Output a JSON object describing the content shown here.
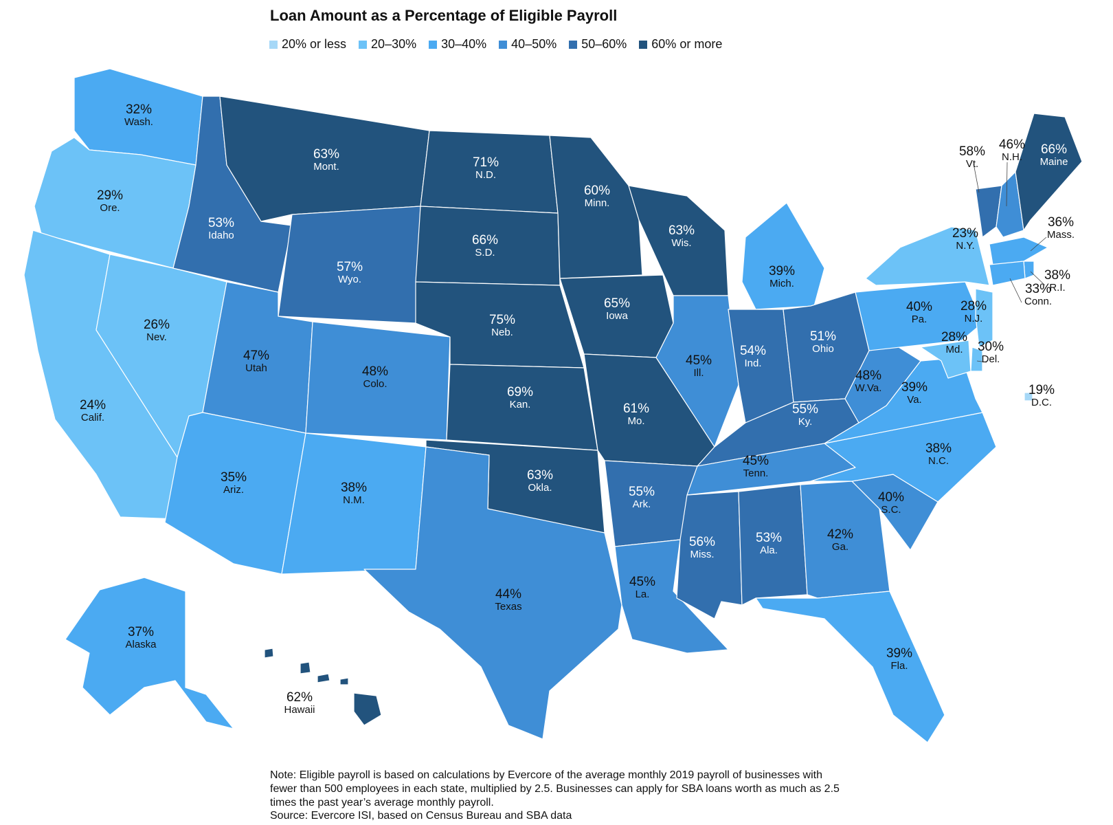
{
  "title": "Loan Amount as a Percentage of Eligible Payroll",
  "legend": [
    {
      "label": "20% or less",
      "color": "#A6D8F7"
    },
    {
      "label": "20–30%",
      "color": "#6CC2F7"
    },
    {
      "label": "30–40%",
      "color": "#4BAAF2"
    },
    {
      "label": "40–50%",
      "color": "#3F8ED6"
    },
    {
      "label": "50–60%",
      "color": "#326FAE"
    },
    {
      "label": "60% or more",
      "color": "#22537D"
    }
  ],
  "states": {
    "WA": {
      "pct": "32%",
      "name": "Wash.",
      "value": 32,
      "color": "#4BAAF2"
    },
    "OR": {
      "pct": "29%",
      "name": "Ore.",
      "value": 29,
      "color": "#6CC2F7"
    },
    "CA": {
      "pct": "24%",
      "name": "Calif.",
      "value": 24,
      "color": "#6CC2F7"
    },
    "NV": {
      "pct": "26%",
      "name": "Nev.",
      "value": 26,
      "color": "#6CC2F7"
    },
    "ID": {
      "pct": "53%",
      "name": "Idaho",
      "value": 53,
      "color": "#326FAE"
    },
    "MT": {
      "pct": "63%",
      "name": "Mont.",
      "value": 63,
      "color": "#22537D"
    },
    "WY": {
      "pct": "57%",
      "name": "Wyo.",
      "value": 57,
      "color": "#326FAE"
    },
    "UT": {
      "pct": "47%",
      "name": "Utah",
      "value": 47,
      "color": "#3F8ED6"
    },
    "CO": {
      "pct": "48%",
      "name": "Colo.",
      "value": 48,
      "color": "#3F8ED6"
    },
    "AZ": {
      "pct": "35%",
      "name": "Ariz.",
      "value": 35,
      "color": "#4BAAF2"
    },
    "NM": {
      "pct": "38%",
      "name": "N.M.",
      "value": 38,
      "color": "#4BAAF2"
    },
    "ND": {
      "pct": "71%",
      "name": "N.D.",
      "value": 71,
      "color": "#22537D"
    },
    "SD": {
      "pct": "66%",
      "name": "S.D.",
      "value": 66,
      "color": "#22537D"
    },
    "NE": {
      "pct": "75%",
      "name": "Neb.",
      "value": 75,
      "color": "#22537D"
    },
    "KS": {
      "pct": "69%",
      "name": "Kan.",
      "value": 69,
      "color": "#22537D"
    },
    "OK": {
      "pct": "63%",
      "name": "Okla.",
      "value": 63,
      "color": "#22537D"
    },
    "TX": {
      "pct": "44%",
      "name": "Texas",
      "value": 44,
      "color": "#3F8ED6"
    },
    "MN": {
      "pct": "60%",
      "name": "Minn.",
      "value": 60,
      "color": "#22537D"
    },
    "IA": {
      "pct": "65%",
      "name": "Iowa",
      "value": 65,
      "color": "#22537D"
    },
    "MO": {
      "pct": "61%",
      "name": "Mo.",
      "value": 61,
      "color": "#22537D"
    },
    "AR": {
      "pct": "55%",
      "name": "Ark.",
      "value": 55,
      "color": "#326FAE"
    },
    "LA": {
      "pct": "45%",
      "name": "La.",
      "value": 45,
      "color": "#3F8ED6"
    },
    "WI": {
      "pct": "63%",
      "name": "Wis.",
      "value": 63,
      "color": "#22537D"
    },
    "IL": {
      "pct": "45%",
      "name": "Ill.",
      "value": 45,
      "color": "#3F8ED6"
    },
    "MI": {
      "pct": "39%",
      "name": "Mich.",
      "value": 39,
      "color": "#4BAAF2"
    },
    "IN": {
      "pct": "54%",
      "name": "Ind.",
      "value": 54,
      "color": "#326FAE"
    },
    "OH": {
      "pct": "51%",
      "name": "Ohio",
      "value": 51,
      "color": "#326FAE"
    },
    "KY": {
      "pct": "55%",
      "name": "Ky.",
      "value": 55,
      "color": "#326FAE"
    },
    "TN": {
      "pct": "45%",
      "name": "Tenn.",
      "value": 45,
      "color": "#3F8ED6"
    },
    "MS": {
      "pct": "56%",
      "name": "Miss.",
      "value": 56,
      "color": "#326FAE"
    },
    "AL": {
      "pct": "53%",
      "name": "Ala.",
      "value": 53,
      "color": "#326FAE"
    },
    "GA": {
      "pct": "42%",
      "name": "Ga.",
      "value": 42,
      "color": "#3F8ED6"
    },
    "FL": {
      "pct": "39%",
      "name": "Fla.",
      "value": 39,
      "color": "#4BAAF2"
    },
    "SC": {
      "pct": "40%",
      "name": "S.C.",
      "value": 40,
      "color": "#3F8ED6"
    },
    "NC": {
      "pct": "38%",
      "name": "N.C.",
      "value": 38,
      "color": "#4BAAF2"
    },
    "VA": {
      "pct": "39%",
      "name": "Va.",
      "value": 39,
      "color": "#4BAAF2"
    },
    "WV": {
      "pct": "48%",
      "name": "W.Va.",
      "value": 48,
      "color": "#3F8ED6"
    },
    "PA": {
      "pct": "40%",
      "name": "Pa.",
      "value": 40,
      "color": "#4BAAF2"
    },
    "NY": {
      "pct": "23%",
      "name": "N.Y.",
      "value": 23,
      "color": "#6CC2F7"
    },
    "VT": {
      "pct": "58%",
      "name": "Vt.",
      "value": 58,
      "color": "#326FAE"
    },
    "NH": {
      "pct": "46%",
      "name": "N.H.",
      "value": 46,
      "color": "#3F8ED6"
    },
    "ME": {
      "pct": "66%",
      "name": "Maine",
      "value": 66,
      "color": "#22537D"
    },
    "MA": {
      "pct": "36%",
      "name": "Mass.",
      "value": 36,
      "color": "#4BAAF2"
    },
    "RI": {
      "pct": "38%",
      "name": "R.I.",
      "value": 38,
      "color": "#4BAAF2"
    },
    "CT": {
      "pct": "33%",
      "name": "Conn.",
      "value": 33,
      "color": "#4BAAF2"
    },
    "NJ": {
      "pct": "28%",
      "name": "N.J.",
      "value": 28,
      "color": "#6CC2F7"
    },
    "DE": {
      "pct": "30%",
      "name": "Del.",
      "value": 30,
      "color": "#6CC2F7"
    },
    "MD": {
      "pct": "28%",
      "name": "Md.",
      "value": 28,
      "color": "#6CC2F7"
    },
    "DC": {
      "pct": "19%",
      "name": "D.C.",
      "value": 19,
      "color": "#A6D8F7"
    },
    "AK": {
      "pct": "37%",
      "name": "Alaska",
      "value": 37,
      "color": "#4BAAF2"
    },
    "HI": {
      "pct": "62%",
      "name": "Hawaii",
      "value": 62,
      "color": "#22537D"
    }
  },
  "note": "Note: Eligible payroll is based on calculations by Evercore of the average monthly 2019 payroll of businesses with fewer than 500 employees in each state, multiplied by 2.5. Businesses can apply for SBA loans worth as much as 2.5 times the past year’s average monthly payroll.",
  "source": "Source: Evercore ISI, based on Census Bureau and SBA data"
}
